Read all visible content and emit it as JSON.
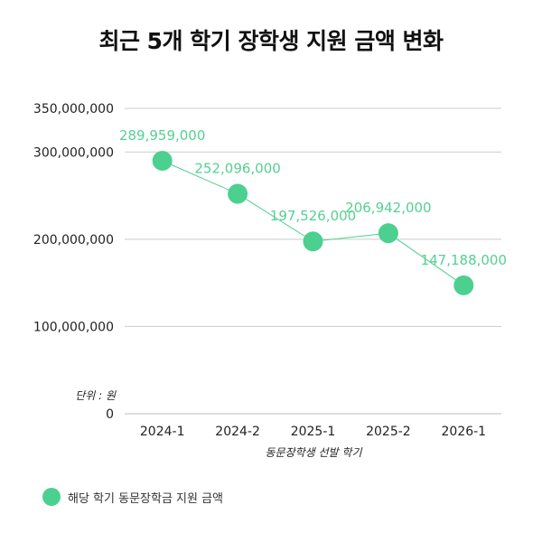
{
  "chart_data": {
    "type": "line",
    "title": "최근 5개 학기 장학생 지원 금액 변화",
    "xlabel": "동문장학생 선발 학기",
    "ylabel": "",
    "unit_label": "단위 : 원",
    "categories": [
      "2024-1",
      "2024-2",
      "2025-1",
      "2025-2",
      "2026-1"
    ],
    "series": [
      {
        "name": "해당 학기 동문장학금 지원 금액",
        "values": [
          289959000,
          252096000,
          197526000,
          206942000,
          147188000
        ],
        "labels": [
          "289,959,000",
          "252,096,000",
          "197,526,000",
          "206,942,000",
          "147,188,000"
        ]
      }
    ],
    "y_ticks": [
      {
        "value": 0,
        "label": "0"
      },
      {
        "value": 100000000,
        "label": "100,000,000"
      },
      {
        "value": 200000000,
        "label": "200,000,000"
      },
      {
        "value": 300000000,
        "label": "300,000,000"
      },
      {
        "value": 350000000,
        "label": "350,000,000"
      }
    ],
    "ylim": [
      0,
      350000000
    ],
    "grid": true,
    "legend_position": "bottom-left",
    "colors": {
      "marker": "#4cd08f",
      "line": "#4cd08f",
      "data_label": "#56cf94",
      "grid": "#cccccc"
    }
  }
}
